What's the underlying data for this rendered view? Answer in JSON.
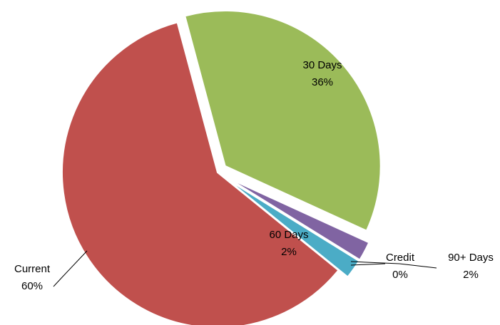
{
  "chart_data": {
    "type": "pie",
    "categories": [
      "30 Days",
      "60 Days",
      "90+ Days",
      "Credit",
      "Current"
    ],
    "values": [
      36,
      2,
      2,
      0,
      60
    ],
    "value_labels": [
      "36%",
      "2%",
      "2%",
      "0%",
      "60%"
    ],
    "colors": [
      "#9bbb59",
      "#8064a2",
      "#4bacc6",
      "#f79646",
      "#c0504d"
    ]
  }
}
